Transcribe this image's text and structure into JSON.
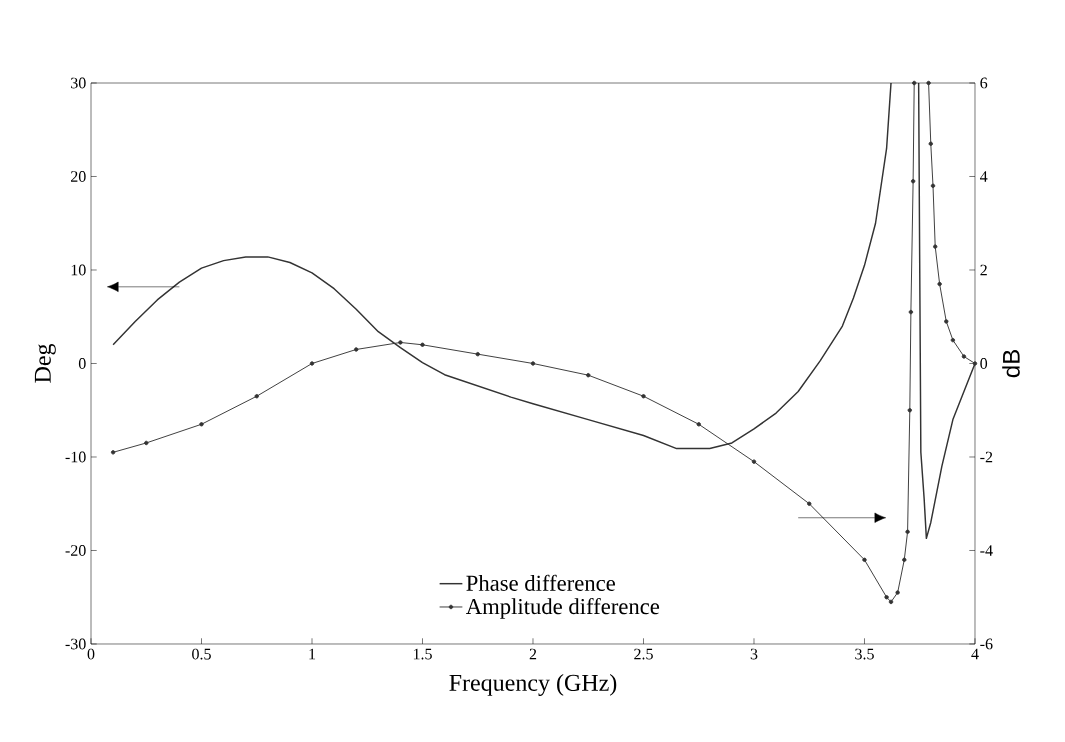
{
  "chart_data": {
    "type": "line",
    "xlabel": "Frequency (GHz)",
    "ylabel": "Deg",
    "y2label": "dB",
    "xlim": [
      0,
      4
    ],
    "xticks": [
      0,
      0.5,
      1,
      1.5,
      2,
      2.5,
      3,
      3.5,
      4
    ],
    "ylim": [
      -30,
      30
    ],
    "yticks": [
      -30,
      -20,
      -10,
      0,
      10,
      20,
      30
    ],
    "y2lim": [
      -6,
      6
    ],
    "y2ticks": [
      -6,
      -4,
      -2,
      0,
      2,
      4,
      6
    ],
    "legend": "bottom",
    "line_style": "solid",
    "series": [
      {
        "name": "Phase difference",
        "color": "#333333",
        "marker": "none",
        "x": [
          0.1,
          0.2,
          0.3,
          0.4,
          0.5,
          0.6,
          0.7,
          0.8,
          0.9,
          1.0,
          1.1,
          1.2,
          1.3,
          1.4,
          1.5,
          1.6,
          1.75,
          1.9,
          2.0,
          2.25,
          2.5,
          2.65,
          2.8,
          2.9,
          3.0,
          3.1,
          3.2,
          3.3,
          3.4,
          3.45,
          3.5,
          3.55,
          3.6,
          3.62,
          3.68,
          3.745,
          3.75,
          3.755,
          3.77,
          3.78,
          3.8,
          3.85,
          3.9,
          3.95,
          4.0
        ],
        "values": [
          2,
          4.5,
          6.8,
          8.7,
          10.2,
          11.0,
          11.4,
          11.4,
          10.8,
          9.7,
          8.0,
          5.8,
          3.4,
          1.7,
          0.1,
          -1.2,
          -2.4,
          -3.6,
          -4.3,
          -6.0,
          -7.7,
          -9.1,
          -9.1,
          -8.5,
          -7.0,
          -5.3,
          -3.0,
          0.3,
          4.0,
          7.0,
          10.5,
          15,
          23,
          30,
          null,
          30,
          10,
          -9.5,
          -14.5,
          -18.7,
          -17,
          -11,
          -6,
          -3,
          0
        ]
      },
      {
        "name": "Amplitude difference",
        "color": "#333333",
        "marker": "circle",
        "axis": "y2",
        "x": [
          0.1,
          0.25,
          0.5,
          0.75,
          1.0,
          1.2,
          1.4,
          1.5,
          1.75,
          2.0,
          2.25,
          2.5,
          2.75,
          3.0,
          3.25,
          3.5,
          3.6,
          3.62,
          3.65,
          3.68,
          3.695,
          3.705,
          3.71,
          3.72,
          3.725,
          3.76,
          3.79,
          3.8,
          3.81,
          3.82,
          3.84,
          3.87,
          3.9,
          3.95,
          4.0
        ],
        "values": [
          -1.9,
          -1.7,
          -1.3,
          -0.7,
          0,
          0.3,
          0.45,
          0.4,
          0.2,
          0.0,
          -0.25,
          -0.7,
          -1.3,
          -2.1,
          -3.0,
          -4.2,
          -5.0,
          -5.1,
          -4.9,
          -4.2,
          -3.6,
          -1.0,
          1.1,
          3.9,
          6,
          null,
          6,
          4.7,
          3.8,
          2.5,
          1.7,
          0.9,
          0.5,
          0.15,
          0
        ]
      }
    ]
  }
}
